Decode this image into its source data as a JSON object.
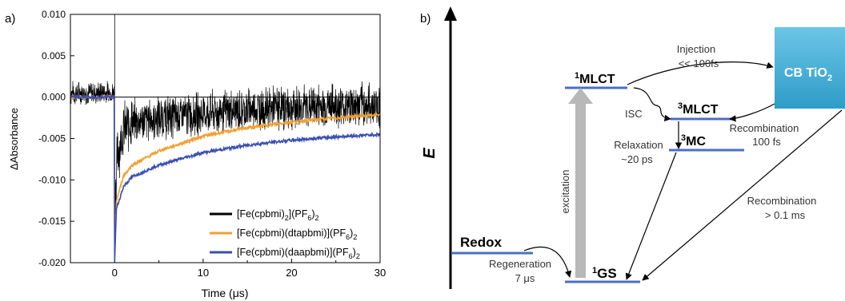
{
  "panel_a": {
    "label": "a)",
    "chart_data": {
      "type": "line",
      "title": "",
      "xlabel": "Time (μs)",
      "ylabel": "ΔAbsorbance",
      "xlim": [
        -5,
        30
      ],
      "ylim": [
        -0.02,
        0.01
      ],
      "x_ticks": [
        0,
        10,
        20,
        30
      ],
      "y_ticks": [
        "0.010",
        "0.005",
        "0.000",
        "-0.005",
        "-0.010",
        "-0.015",
        "-0.020"
      ],
      "y_tick_values": [
        0.01,
        0.005,
        0.0,
        -0.005,
        -0.01,
        -0.015,
        -0.02
      ],
      "grid": false,
      "legend_position": "bottom-right",
      "reference_line_y": 0.0,
      "series": [
        {
          "name": "[Fe(cpbmi)2](PF6)2",
          "color": "#000000",
          "noisy": true,
          "x": [
            -5,
            -0.05,
            0,
            0.3,
            1,
            2,
            5,
            10,
            15,
            20,
            25,
            30
          ],
          "y": [
            0.0005,
            0.0005,
            -0.013,
            -0.007,
            -0.004,
            -0.003,
            -0.0025,
            -0.002,
            -0.0015,
            -0.0012,
            -0.001,
            -0.001
          ]
        },
        {
          "name": "[Fe(cpbmi)(dtapbmi)](PF6)2",
          "color": "#f0a030",
          "noisy": false,
          "x": [
            -5,
            -0.05,
            0,
            0.2,
            1,
            2,
            5,
            10,
            15,
            20,
            25,
            30
          ],
          "y": [
            0.0,
            0.0,
            -0.0195,
            -0.0125,
            -0.0095,
            -0.0082,
            -0.0065,
            -0.0047,
            -0.0037,
            -0.003,
            -0.0025,
            -0.0021
          ]
        },
        {
          "name": "[Fe(cpbmi)(daapbmi)](PF6)2",
          "color": "#3a4fb0",
          "noisy": false,
          "x": [
            -5,
            -0.05,
            0,
            0.2,
            1,
            2,
            5,
            10,
            15,
            20,
            25,
            30
          ],
          "y": [
            0.0,
            0.0,
            -0.0198,
            -0.0135,
            -0.0108,
            -0.0096,
            -0.0082,
            -0.0067,
            -0.0058,
            -0.0052,
            -0.0048,
            -0.0045
          ]
        }
      ],
      "legend": [
        {
          "main": "[Fe(cpbmi)",
          "sub1": "2",
          "mid": "](PF",
          "sub2": "6",
          "end": ")",
          "sub3": "2"
        },
        {
          "main": "[Fe(cpbmi)(dtapbmi)](PF",
          "sub1": "",
          "mid": "",
          "sub2": "6",
          "end": ")",
          "sub3": "2"
        },
        {
          "main": "[Fe(cpbmi)(daapbmi)](PF",
          "sub1": "",
          "mid": "",
          "sub2": "6",
          "end": ")",
          "sub3": "2"
        }
      ]
    }
  },
  "panel_b": {
    "label": "b)",
    "energy_axis_label": "E",
    "states": {
      "mlct1": {
        "sup": "1",
        "name": "MLCT"
      },
      "mlct3": {
        "sup": "3",
        "name": "MLCT"
      },
      "mc3": {
        "sup": "3",
        "name": "MC"
      },
      "gs1": {
        "sup": "1",
        "name": "GS"
      },
      "redox": "Redox",
      "cb_label": "CB TiO",
      "cb_sub": "2"
    },
    "colors": {
      "level": "#4a6fc1",
      "cb_top": "#6cc5e6",
      "cb_bottom": "#2e9cc8",
      "excitation": "#b8b8b8"
    },
    "annotations": {
      "injection": "Injection",
      "injection_time": "<< 100fs",
      "isc": "ISC",
      "recombination_1": "Recombination",
      "recombination_1_time": "100 fs",
      "relaxation": "Relaxation",
      "relaxation_time": "~20 ps",
      "excitation": "excitation",
      "recombination_2": "Recombination",
      "recombination_2_time": "> 0.1 ms",
      "regeneration": "Regeneration",
      "regeneration_time": "7 μs"
    }
  }
}
